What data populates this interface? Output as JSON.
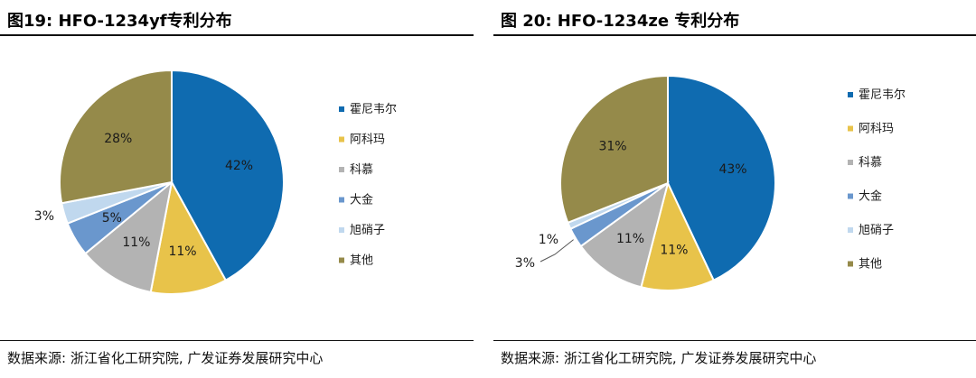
{
  "charts": [
    {
      "title": "图19:  HFO-1234yf专利分布",
      "source": "数据来源:  浙江省化工研究院, 广发证券发展研究中心"
    },
    {
      "title": "图 20:  HFO-1234ze 专利分布",
      "source": "数据来源:  浙江省化工研究院, 广发证券发展研究中心"
    }
  ],
  "chart_data": [
    {
      "type": "pie",
      "title": "HFO-1234yf专利分布",
      "slices": [
        {
          "label": "霍尼韦尔",
          "value": 42,
          "display": "42%",
          "color": "#0f6bb0"
        },
        {
          "label": "阿科玛",
          "value": 11,
          "display": "11%",
          "color": "#e8c34a"
        },
        {
          "label": "科慕",
          "value": 11,
          "display": "11%",
          "color": "#b3b3b3"
        },
        {
          "label": "大金",
          "value": 5,
          "display": "5%",
          "color": "#6a97cd"
        },
        {
          "label": "旭硝子",
          "value": 3,
          "display": "3%",
          "color": "#c0d8ee"
        },
        {
          "label": "其他",
          "value": 28,
          "display": "28%",
          "color": "#958a4a"
        }
      ],
      "legend_position": "right"
    },
    {
      "type": "pie",
      "title": "HFO-1234ze 专利分布",
      "slices": [
        {
          "label": "霍尼韦尔",
          "value": 43,
          "display": "43%",
          "color": "#0f6bb0"
        },
        {
          "label": "阿科玛",
          "value": 11,
          "display": "11%",
          "color": "#e8c34a"
        },
        {
          "label": "科慕",
          "value": 11,
          "display": "11%",
          "color": "#b3b3b3"
        },
        {
          "label": "大金",
          "value": 3,
          "display": "3%",
          "color": "#6a97cd"
        },
        {
          "label": "旭硝子",
          "value": 1,
          "display": "1%",
          "color": "#c0d8ee"
        },
        {
          "label": "其他",
          "value": 31,
          "display": "31%",
          "color": "#958a4a"
        }
      ],
      "legend_position": "right"
    }
  ]
}
